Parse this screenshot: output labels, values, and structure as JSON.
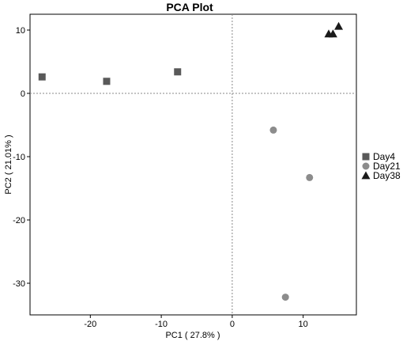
{
  "chart_data": {
    "type": "scatter",
    "title": "PCA Plot",
    "xlabel": "PC1 ( 27.8% )",
    "ylabel": "PC2 ( 21.01% )",
    "xlim": [
      -28.5,
      17.5
    ],
    "ylim": [
      -35,
      12.5
    ],
    "xticks": [
      -20,
      -10,
      0,
      10
    ],
    "yticks": [
      10,
      0,
      -10,
      -20,
      -30
    ],
    "reference_lines": {
      "x": 0,
      "y": 0,
      "style": "dotted"
    },
    "grid": false,
    "legend_position": "right",
    "series": [
      {
        "name": "Day4",
        "marker": "square",
        "color": "#595959",
        "points": [
          [
            -26.8,
            2.6
          ],
          [
            -17.7,
            1.9
          ],
          [
            -7.7,
            3.4
          ]
        ]
      },
      {
        "name": "Day21",
        "marker": "circle",
        "color": "#8c8c8c",
        "points": [
          [
            5.8,
            -5.8
          ],
          [
            10.9,
            -13.3
          ],
          [
            7.5,
            -32.2
          ]
        ]
      },
      {
        "name": "Day38",
        "marker": "triangle",
        "color": "#1a1a1a",
        "points": [
          [
            13.6,
            9.4
          ],
          [
            14.2,
            9.4
          ],
          [
            15.0,
            10.6
          ]
        ]
      }
    ]
  }
}
